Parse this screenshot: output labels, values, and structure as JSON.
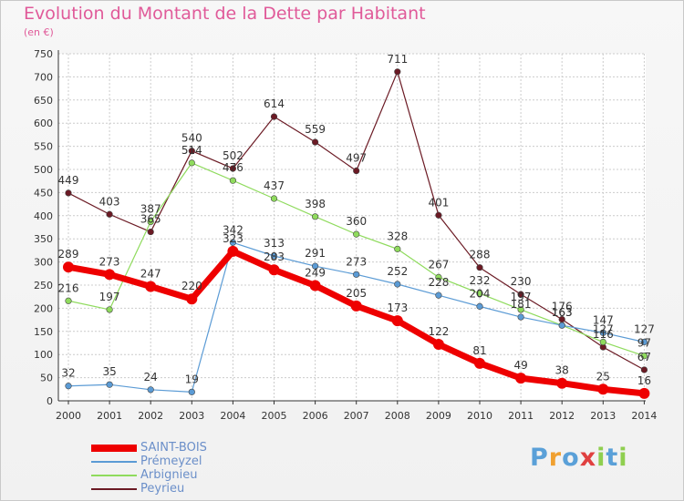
{
  "title": "Evolution du Montant de la Dette par Habitant",
  "subtitle": "(en €)",
  "logo": "Proxiti",
  "chart_data": {
    "type": "line",
    "title": "Evolution du Montant de la Dette par Habitant",
    "ylabel": "(en €)",
    "ylim": [
      0,
      750
    ],
    "yticks": [
      0,
      50,
      100,
      150,
      200,
      250,
      300,
      350,
      400,
      450,
      500,
      550,
      600,
      650,
      700,
      750
    ],
    "grid": true,
    "legend": "bottom-left",
    "x": [
      "2000",
      "2001",
      "2002",
      "2003",
      "2004",
      "2005",
      "2006",
      "2007",
      "2008",
      "2009",
      "2010",
      "2011",
      "2012",
      "2013",
      "2014"
    ],
    "series": [
      {
        "name": "SAINT-BOIS",
        "color": "#ee0000",
        "values": [
          289,
          273,
          247,
          220,
          323,
          283,
          249,
          205,
          173,
          122,
          81,
          49,
          38,
          25,
          16
        ]
      },
      {
        "name": "Prémeyzel",
        "color": "#5b9bd5",
        "values": [
          32,
          35,
          24,
          19,
          342,
          313,
          291,
          273,
          252,
          228,
          204,
          181,
          163,
          147,
          127
        ]
      },
      {
        "name": "Arbignieu",
        "color": "#8fdb5d",
        "values": [
          216,
          197,
          387,
          514,
          476,
          437,
          398,
          360,
          328,
          267,
          232,
          197,
          163,
          127,
          97
        ]
      },
      {
        "name": "Peyrieu",
        "color": "#6b1a24",
        "values": [
          449,
          403,
          365,
          540,
          502,
          614,
          559,
          497,
          711,
          401,
          288,
          230,
          176,
          116,
          67
        ]
      }
    ]
  }
}
